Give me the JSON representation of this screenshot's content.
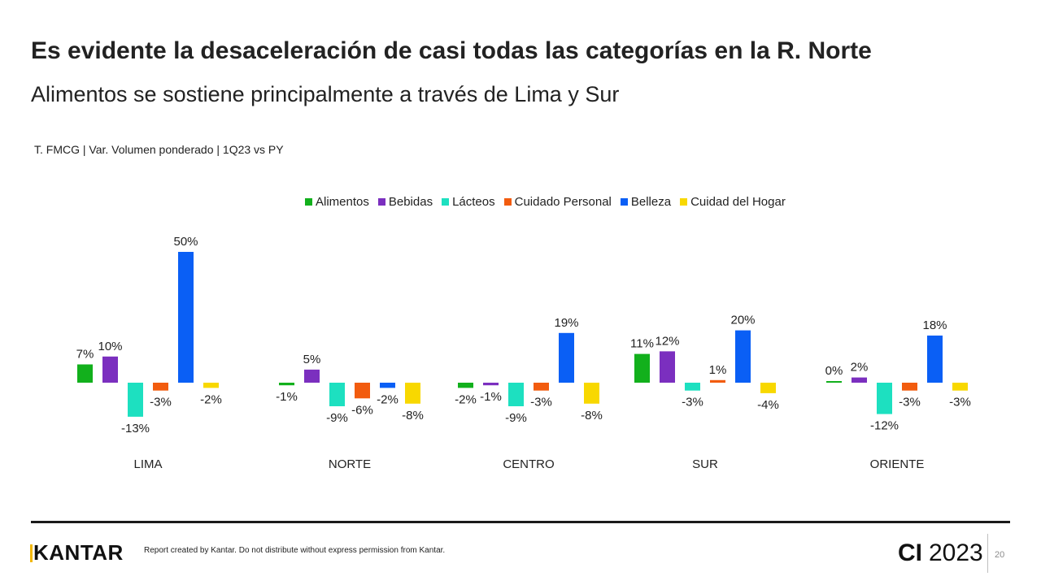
{
  "header": {
    "title": "Es evidente la desaceleración de casi todas las categorías en la R. Norte",
    "subtitle": "Alimentos se sostiene principalmente a través de Lima y Sur",
    "source": "T. FMCG | Var. Volumen ponderado | 1Q23 vs PY"
  },
  "chart_data": {
    "type": "bar",
    "categories": [
      "LIMA",
      "NORTE",
      "CENTRO",
      "SUR",
      "ORIENTE"
    ],
    "series": [
      {
        "name": "Alimentos",
        "color": "#12b01c",
        "values": [
          7,
          -1,
          -2,
          11,
          0
        ]
      },
      {
        "name": "Bebidas",
        "color": "#7b2fbf",
        "values": [
          10,
          5,
          -1,
          12,
          2
        ]
      },
      {
        "name": "Lácteos",
        "color": "#1de0c0",
        "values": [
          -13,
          -9,
          -9,
          -3,
          -12
        ]
      },
      {
        "name": "Cuidado Personal",
        "color": "#f25c0f",
        "values": [
          -3,
          -6,
          -3,
          1,
          -3
        ]
      },
      {
        "name": "Belleza",
        "color": "#0a5ff5",
        "values": [
          50,
          -2,
          19,
          20,
          18
        ]
      },
      {
        "name": "Cuidad del Hogar",
        "color": "#f8d800",
        "values": [
          -2,
          -8,
          -8,
          -4,
          -3
        ]
      }
    ],
    "labels": [
      [
        "7%",
        "-1%",
        "-2%",
        "11%",
        "0%"
      ],
      [
        "10%",
        "5%",
        "-1%",
        "12%",
        "2%"
      ],
      [
        "-13%",
        "-9%",
        "-9%",
        "-3%",
        "-12%"
      ],
      [
        "-3%",
        "-6%",
        "-3%",
        "1%",
        "-3%"
      ],
      [
        "50%",
        "-2%",
        "19%",
        "20%",
        "18%"
      ],
      [
        "-2%",
        "-8%",
        "-8%",
        "-4%",
        "-3%"
      ]
    ],
    "unit": "%",
    "legend_position": "top",
    "grid": false
  },
  "footer": {
    "logo": "KANTAR",
    "disclaimer": "Report created by Kantar. Do not distribute without express permission from Kantar.",
    "ci_label": "CI",
    "year": "2023",
    "page_number": "20"
  }
}
